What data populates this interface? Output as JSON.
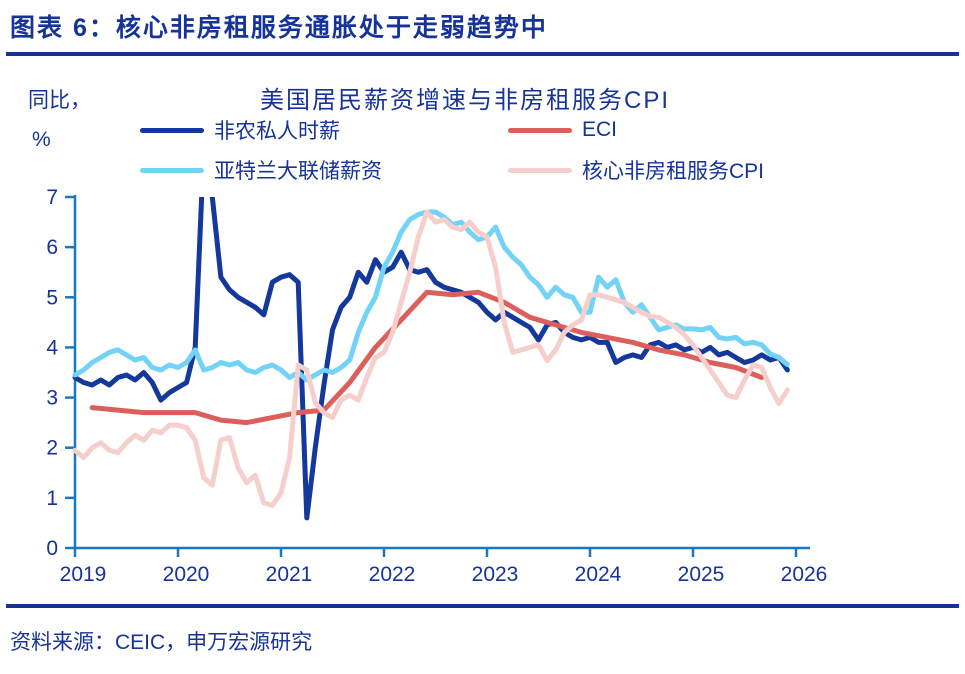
{
  "figure": {
    "header_title": "图表 6：核心非房租服务通胀处于走弱趋势中",
    "source_note": "资料来源：CEIC，申万宏源研究"
  },
  "chart_data": {
    "type": "line",
    "title": "美国居民薪资增速与非房租服务CPI",
    "y_axis_unit_line1": "同比，",
    "y_axis_unit_line2": "%",
    "ylim": [
      0,
      7
    ],
    "y_ticks": [
      7,
      6,
      5,
      4,
      3,
      2,
      1,
      0
    ],
    "x_ticks": [
      2019,
      2020,
      2021,
      2022,
      2023,
      2024,
      2025,
      2026
    ],
    "x_start_year": 2019,
    "grid": "off",
    "legend_position": "top",
    "axis_color": "#1A78C2",
    "series": [
      {
        "name": "非农私人时薪",
        "color": "#14389B",
        "cadence": "monthly",
        "values": [
          3.4,
          3.3,
          3.25,
          3.35,
          3.25,
          3.4,
          3.45,
          3.35,
          3.5,
          3.3,
          2.95,
          3.1,
          3.2,
          3.3,
          4.0,
          8.0,
          7.0,
          5.4,
          5.15,
          5.0,
          4.9,
          4.8,
          4.65,
          5.3,
          5.4,
          5.45,
          5.3,
          0.6,
          2.0,
          3.25,
          4.35,
          4.8,
          5.0,
          5.5,
          5.3,
          5.75,
          5.5,
          5.6,
          5.9,
          5.55,
          5.5,
          5.55,
          5.3,
          5.2,
          5.15,
          5.1,
          5.0,
          4.9,
          4.7,
          4.55,
          4.7,
          4.6,
          4.5,
          4.4,
          4.15,
          4.45,
          4.5,
          4.3,
          4.2,
          4.15,
          4.2,
          4.1,
          4.1,
          3.7,
          3.8,
          3.85,
          3.8,
          4.05,
          4.1,
          4.0,
          4.05,
          3.95,
          4.0,
          3.9,
          4.0,
          3.85,
          3.9,
          3.8,
          3.7,
          3.75,
          3.85,
          3.75,
          3.8,
          3.55
        ]
      },
      {
        "name": "ECI",
        "color": "#DC5F5C",
        "cadence": "quarterly",
        "values": [
          2.8,
          2.75,
          2.7,
          2.7,
          2.7,
          2.55,
          2.5,
          2.6,
          2.7,
          2.75,
          3.3,
          4.0,
          4.55,
          5.1,
          5.05,
          5.1,
          4.9,
          4.6,
          4.45,
          4.3,
          4.2,
          4.1,
          3.95,
          3.85,
          3.7,
          3.6,
          3.4
        ]
      },
      {
        "name": "亚特兰大联储薪资",
        "color": "#72D3F7",
        "cadence": "monthly",
        "values": [
          3.45,
          3.55,
          3.7,
          3.8,
          3.9,
          3.95,
          3.85,
          3.75,
          3.8,
          3.6,
          3.55,
          3.65,
          3.6,
          3.7,
          3.95,
          3.55,
          3.6,
          3.7,
          3.65,
          3.7,
          3.55,
          3.5,
          3.6,
          3.65,
          3.55,
          3.4,
          3.5,
          3.35,
          3.45,
          3.55,
          3.5,
          3.6,
          3.75,
          4.3,
          4.7,
          5.0,
          5.6,
          5.9,
          6.3,
          6.55,
          6.65,
          6.7,
          6.7,
          6.6,
          6.45,
          6.5,
          6.3,
          6.15,
          6.2,
          6.4,
          6.0,
          5.8,
          5.65,
          5.4,
          5.25,
          5.0,
          5.2,
          5.05,
          5.0,
          4.7,
          4.7,
          5.4,
          5.2,
          5.35,
          4.9,
          4.7,
          4.85,
          4.6,
          4.35,
          4.4,
          4.45,
          4.37,
          4.37,
          4.35,
          4.4,
          4.2,
          4.17,
          4.2,
          4.07,
          4.1,
          4.05,
          3.87,
          3.8,
          3.66
        ]
      },
      {
        "name": "核心非房租服务CPI",
        "color": "#F6CFCD",
        "cadence": "monthly",
        "values": [
          1.95,
          1.8,
          2.0,
          2.1,
          1.95,
          1.9,
          2.1,
          2.25,
          2.15,
          2.35,
          2.3,
          2.45,
          2.45,
          2.4,
          2.15,
          1.4,
          1.25,
          2.15,
          2.2,
          1.6,
          1.3,
          1.45,
          0.9,
          0.85,
          1.1,
          1.8,
          3.65,
          3.55,
          2.9,
          2.7,
          2.6,
          2.95,
          3.05,
          2.95,
          3.4,
          3.8,
          3.9,
          4.3,
          4.9,
          5.5,
          6.2,
          6.7,
          6.5,
          6.55,
          6.4,
          6.35,
          6.5,
          6.3,
          6.2,
          5.6,
          4.5,
          3.9,
          3.95,
          4.0,
          4.05,
          3.74,
          3.95,
          4.3,
          4.45,
          4.55,
          5.05,
          5.05,
          5.0,
          4.95,
          4.9,
          4.8,
          4.7,
          4.62,
          4.6,
          4.5,
          4.4,
          4.25,
          4.05,
          3.8,
          3.55,
          3.3,
          3.05,
          3.0,
          3.35,
          3.65,
          3.6,
          3.2,
          2.88,
          3.15
        ]
      }
    ]
  },
  "colors": {
    "text_blue": "#16339A",
    "divider_navy": "#16338E",
    "axis_blue": "#1A78C2",
    "background": "#FFFFFF"
  }
}
